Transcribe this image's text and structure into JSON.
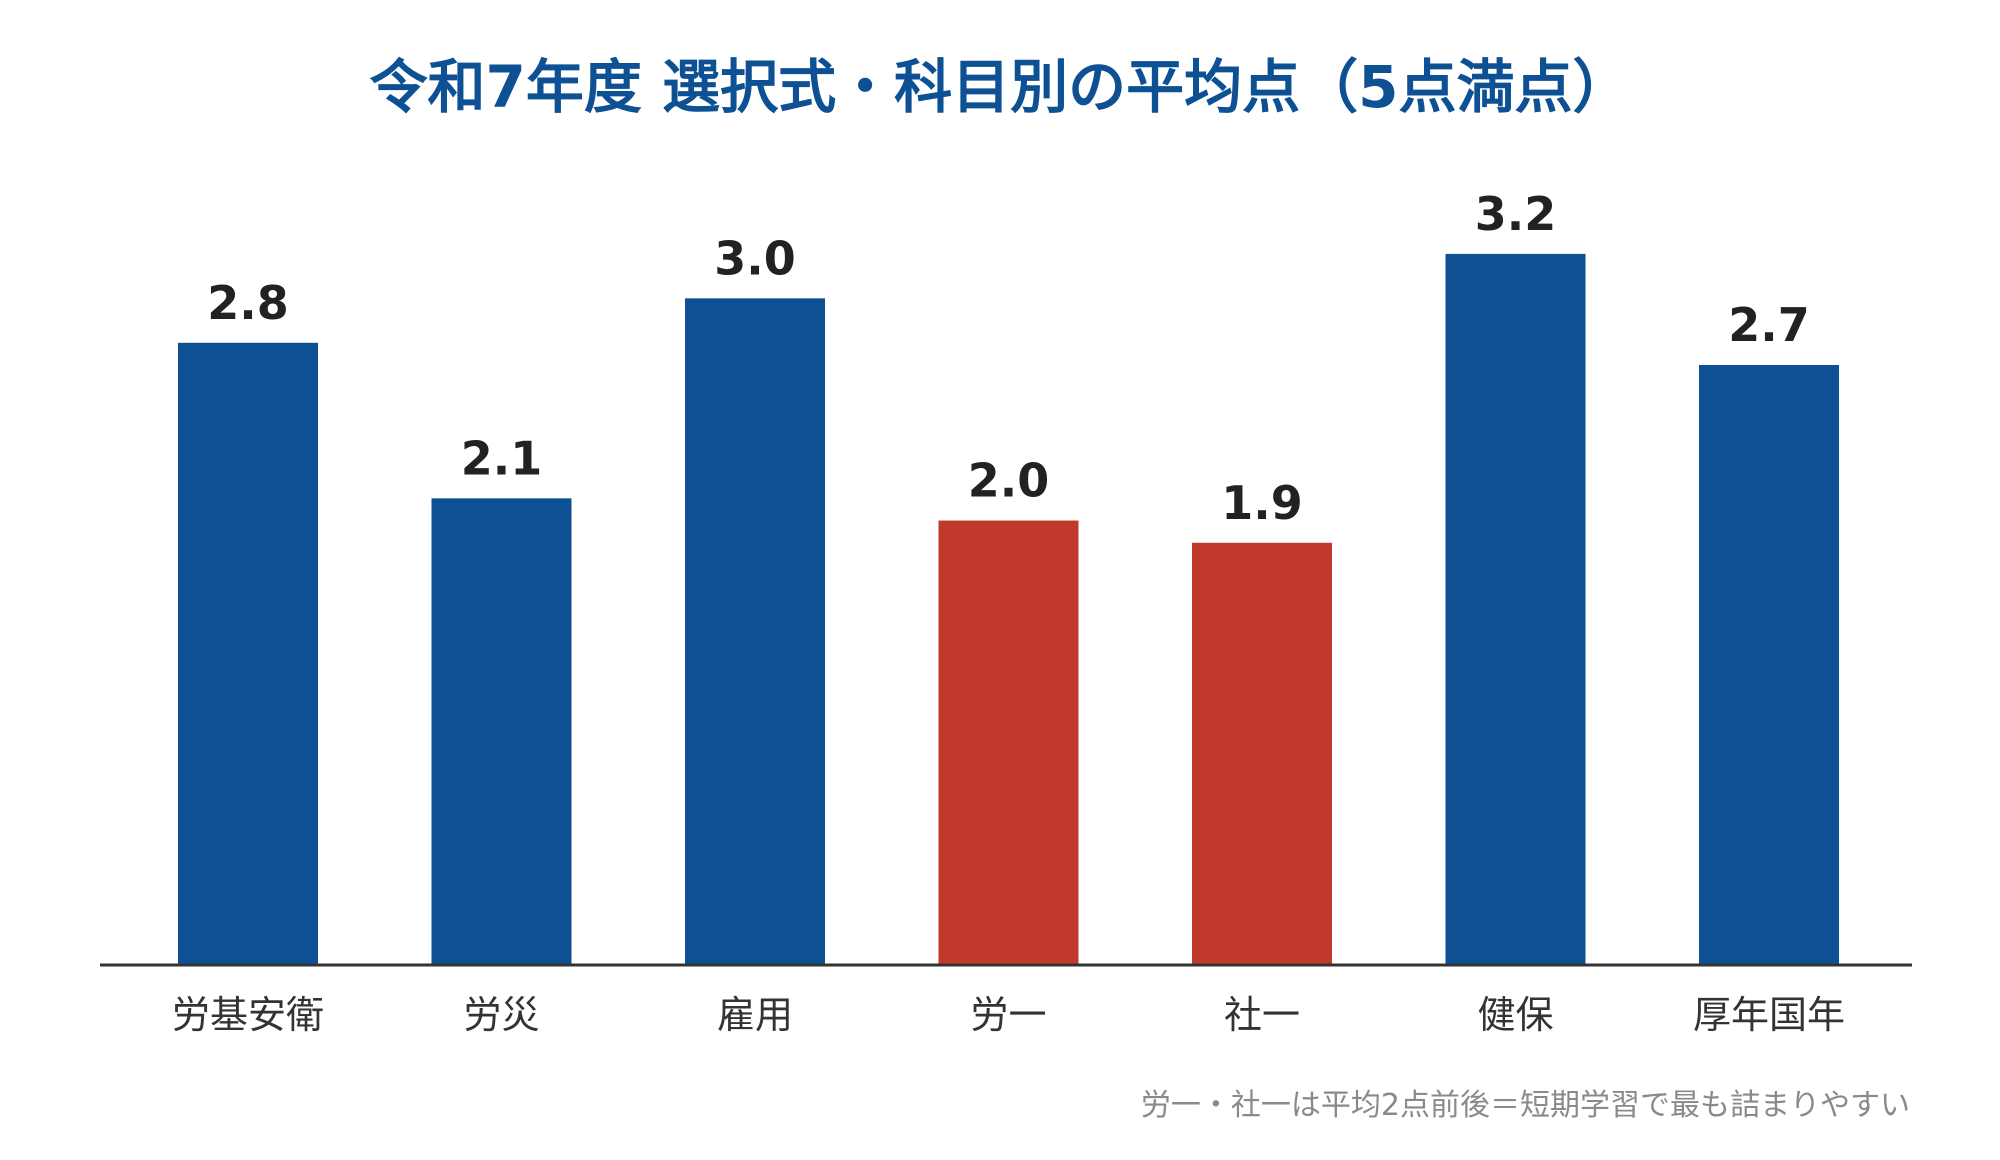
{
  "chart_data": {
    "type": "bar",
    "title": "令和7年度 選択式・科目別の平均点（5点満点）",
    "categories": [
      "労基安衛",
      "労災",
      "雇用",
      "労一",
      "社一",
      "健保",
      "厚年国年"
    ],
    "values": [
      2.8,
      2.1,
      3.0,
      2.0,
      1.9,
      3.2,
      2.7
    ],
    "value_labels": [
      "2.8",
      "2.1",
      "3.0",
      "2.0",
      "1.9",
      "3.2",
      "2.7"
    ],
    "highlighted": [
      "労一",
      "社一"
    ],
    "ylim": [
      0,
      3.6
    ],
    "grid": false,
    "colors": {
      "default": "#0d5194",
      "highlight": "#c0392b",
      "axis": "#333333"
    },
    "annotation": "労一・社一は平均2点前後＝短期学習で最も詰まりやすい"
  }
}
